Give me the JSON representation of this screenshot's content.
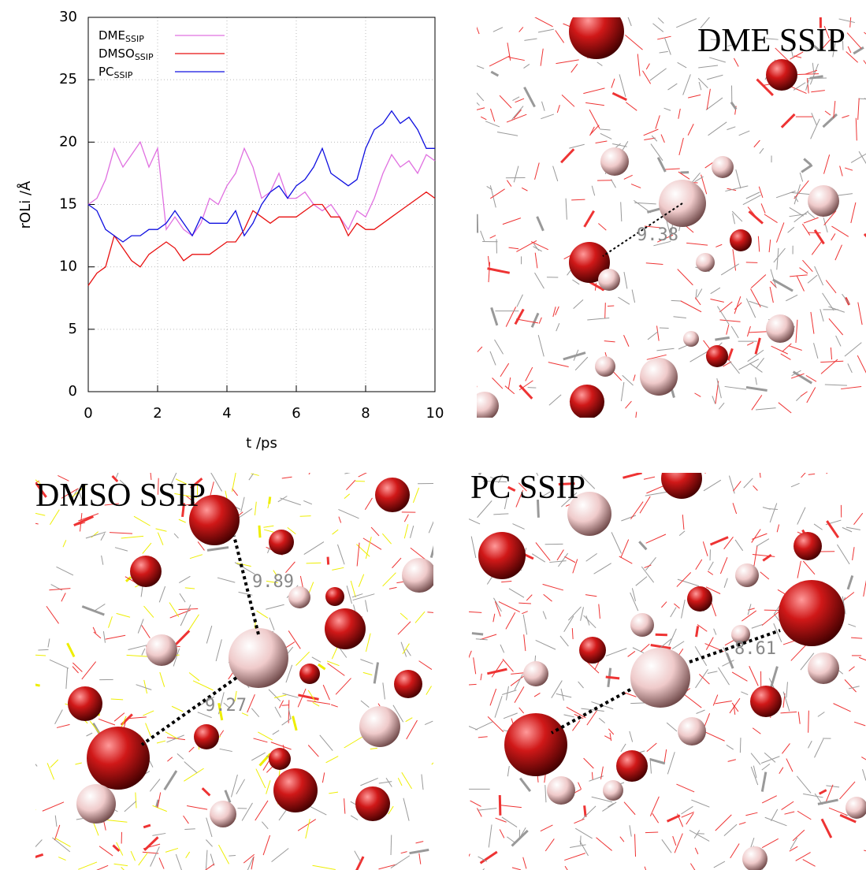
{
  "chart_data": {
    "type": "line",
    "ylabel": "rOLi /Å",
    "xlabel": "t /ps",
    "x": [
      0,
      0.25,
      0.5,
      0.75,
      1,
      1.25,
      1.5,
      1.75,
      2,
      2.25,
      2.5,
      2.75,
      3,
      3.25,
      3.5,
      3.75,
      4,
      4.25,
      4.5,
      4.75,
      5,
      5.25,
      5.5,
      5.75,
      6,
      6.25,
      6.5,
      6.75,
      7,
      7.25,
      7.5,
      7.75,
      8,
      8.25,
      8.5,
      8.75,
      9,
      9.25,
      9.5,
      9.75,
      10
    ],
    "series": [
      {
        "name": "DME",
        "subscript": "SSIP",
        "color": "#e070e0",
        "values": [
          15,
          15.5,
          17,
          19.5,
          18,
          19,
          20,
          18,
          19.5,
          13,
          14,
          13,
          12.5,
          13.5,
          15.5,
          15,
          16.5,
          17.5,
          19.5,
          18,
          15.5,
          16,
          17.5,
          15.5,
          15.5,
          16,
          15,
          14.5,
          15,
          14,
          13,
          14.5,
          14,
          15.5,
          17.5,
          19,
          18,
          18.5,
          17.5,
          19,
          18.5
        ]
      },
      {
        "name": "DMSO",
        "subscript": "SSIP",
        "color": "#e81010",
        "values": [
          8.5,
          9.5,
          10,
          12.5,
          11.5,
          10.5,
          10,
          11,
          11.5,
          12,
          11.5,
          10.5,
          11,
          11,
          11,
          11.5,
          12,
          12,
          13,
          14.5,
          14,
          13.5,
          14,
          14,
          14,
          14.5,
          15,
          15,
          14,
          14,
          12.5,
          13.5,
          13,
          13,
          13.5,
          14,
          14.5,
          15,
          15.5,
          16,
          15.5
        ]
      },
      {
        "name": "PC",
        "subscript": "SSIP",
        "color": "#1010e0",
        "values": [
          15,
          14.5,
          13,
          12.5,
          12,
          12.5,
          12.5,
          13,
          13,
          13.5,
          14.5,
          13.5,
          12.5,
          14,
          13.5,
          13.5,
          13.5,
          14.5,
          12.5,
          13.5,
          15,
          16,
          16.5,
          15.5,
          16.5,
          17,
          18,
          19.5,
          17.5,
          17,
          16.5,
          17,
          19.5,
          21,
          21.5,
          22.5,
          21.5,
          22,
          21,
          19.5,
          19.5
        ]
      }
    ],
    "xlim": [
      0,
      10
    ],
    "xticks": [
      0,
      2,
      4,
      6,
      8,
      10
    ],
    "ylim": [
      0,
      30
    ],
    "yticks": [
      0,
      5,
      10,
      15,
      20,
      25,
      30
    ],
    "grid": true,
    "legend": "upper left"
  },
  "panels": [
    {
      "title": "DME SSIP",
      "distances": [
        "9.38"
      ]
    },
    {
      "title": "DMSO SSIP",
      "distances": [
        "9.89",
        "9.27"
      ]
    },
    {
      "title": "PC SSIP",
      "distances": [
        "8.61"
      ]
    }
  ]
}
